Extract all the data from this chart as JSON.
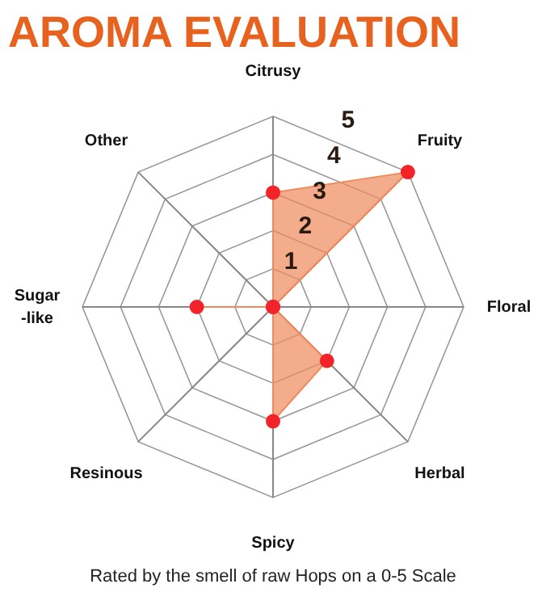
{
  "chart_data": {
    "type": "radar",
    "title": "AROMA EVALUATION",
    "categories": [
      "Citrusy",
      "Fruity",
      "Floral",
      "Herbal",
      "Spicy",
      "Resinous",
      "Sugar\n-like",
      "Other"
    ],
    "series": [
      {
        "color": "#ee8a5c",
        "values": [
          3,
          5,
          0,
          2,
          3,
          0,
          2,
          0
        ]
      }
    ],
    "ylim": [
      0,
      5
    ],
    "yticks": [
      1,
      2,
      3,
      4,
      5
    ],
    "marker": "circle",
    "grid": true,
    "annotations": [
      "Rated by the smell of raw Hops on a 0-5 Scale"
    ]
  }
}
